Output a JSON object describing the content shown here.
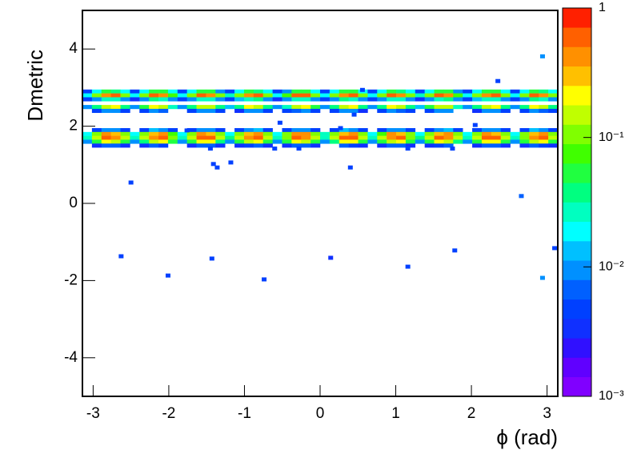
{
  "chart_data": {
    "type": "heatmap2d",
    "xlabel": "ϕ (rad)",
    "ylabel": "Dmetric",
    "xlim": [
      -3.1416,
      3.1416
    ],
    "xticks": [
      -3,
      -2,
      -1,
      0,
      1,
      2,
      3
    ],
    "ylim": [
      -5,
      5
    ],
    "yticks": [
      -4,
      -2,
      0,
      2,
      4
    ],
    "zlim": [
      0.001,
      1
    ],
    "zlog": true,
    "zticks": [
      {
        "value": 0.001,
        "label": "10⁻³"
      },
      {
        "value": 0.01,
        "label": "10⁻²"
      },
      {
        "value": 0.1,
        "label": "10⁻¹"
      },
      1
    ],
    "palette": [
      "#8000ff",
      "#6000ff",
      "#3010ff",
      "#1030ff",
      "#0040ff",
      "#0060ff",
      "#0090ff",
      "#00c0ff",
      "#00ffff",
      "#00ffc0",
      "#00ff80",
      "#20ff40",
      "#40ff00",
      "#80ff00",
      "#c0ff00",
      "#ffff00",
      "#ffc000",
      "#ff9000",
      "#ff6000",
      "#ff2000"
    ],
    "rows": [
      {
        "y": [
          2.85,
          2.95
        ],
        "values": [
          0.005,
          0.02,
          0.05,
          0.04,
          0.02,
          0.004,
          0.02,
          0.06,
          0.05,
          0.02,
          0.005,
          0.02,
          0.05,
          0.05,
          0.01,
          0.004,
          0.02,
          0.06,
          0.04,
          0.02,
          0.005,
          0.01,
          0.05,
          0.05,
          0.02,
          0.005,
          0.02,
          0.05,
          0.06,
          0.02,
          0.004,
          0.02,
          0.05,
          0.04,
          0.02,
          0.005,
          0.02,
          0.06,
          0.05,
          0.01,
          0.004,
          0.02,
          0.05,
          0.05,
          0.02,
          0.005,
          0.02,
          0.05,
          0.04,
          0.02
        ]
      },
      {
        "y": [
          2.75,
          2.85
        ],
        "values": [
          0.02,
          0.1,
          0.5,
          0.7,
          0.1,
          0.02,
          0.12,
          0.6,
          0.5,
          0.08,
          0.02,
          0.1,
          0.7,
          0.5,
          0.1,
          0.03,
          0.1,
          0.5,
          0.6,
          0.1,
          0.02,
          0.08,
          0.6,
          0.7,
          0.12,
          0.02,
          0.1,
          0.5,
          0.6,
          0.1,
          0.02,
          0.1,
          0.7,
          0.5,
          0.1,
          0.03,
          0.12,
          0.6,
          0.5,
          0.08,
          0.02,
          0.1,
          0.5,
          0.7,
          0.1,
          0.02,
          0.1,
          0.6,
          0.5,
          0.1
        ]
      },
      {
        "y": [
          2.65,
          2.75
        ],
        "values": [
          0.004,
          0.01,
          0.03,
          0.03,
          0.01,
          0.003,
          0.01,
          0.04,
          0.03,
          0.008,
          0.004,
          0.01,
          0.03,
          0.03,
          0.01,
          0.004,
          0.012,
          0.03,
          0.04,
          0.01,
          0.003,
          0.01,
          0.03,
          0.03,
          0.01,
          0.004,
          0.01,
          0.04,
          0.03,
          0.01,
          0.004,
          0.01,
          0.03,
          0.03,
          0.008,
          0.003,
          0.01,
          0.03,
          0.04,
          0.01,
          0.004,
          0.012,
          0.03,
          0.03,
          0.01,
          0.004,
          0.01,
          0.04,
          0.03,
          0.01
        ]
      },
      {
        "y": [
          2.45,
          2.55
        ],
        "values": [
          0.01,
          0.04,
          0.15,
          0.2,
          0.04,
          0.01,
          0.05,
          0.2,
          0.15,
          0.03,
          0.01,
          0.04,
          0.15,
          0.15,
          0.04,
          0.012,
          0.04,
          0.2,
          0.15,
          0.04,
          0.01,
          0.03,
          0.15,
          0.2,
          0.05,
          0.01,
          0.04,
          0.15,
          0.2,
          0.04,
          0.01,
          0.04,
          0.2,
          0.15,
          0.04,
          0.012,
          0.05,
          0.15,
          0.15,
          0.03,
          0.01,
          0.04,
          0.15,
          0.2,
          0.04,
          0.01,
          0.04,
          0.2,
          0.15,
          0.04
        ]
      },
      {
        "y": [
          2.35,
          2.45
        ],
        "values": [
          null,
          0.004,
          0.008,
          0.008,
          0.004,
          null,
          0.004,
          0.008,
          0.006,
          null,
          null,
          0.004,
          0.008,
          0.008,
          0.004,
          null,
          0.003,
          0.008,
          0.008,
          0.004,
          null,
          0.004,
          0.006,
          0.008,
          0.004,
          null,
          0.004,
          0.008,
          0.008,
          0.003,
          null,
          0.004,
          0.008,
          0.006,
          0.004,
          null,
          0.004,
          0.008,
          0.008,
          null,
          null,
          0.003,
          0.008,
          0.008,
          0.004,
          null,
          0.004,
          0.008,
          0.006,
          0.004
        ]
      },
      {
        "y": [
          1.85,
          1.95
        ],
        "values": [
          null,
          0.005,
          0.01,
          0.01,
          0.005,
          null,
          0.005,
          0.012,
          0.01,
          0.004,
          null,
          0.005,
          0.01,
          0.01,
          0.005,
          null,
          0.004,
          0.01,
          0.012,
          0.005,
          null,
          0.005,
          0.01,
          0.01,
          0.005,
          null,
          0.005,
          0.012,
          0.01,
          0.004,
          null,
          0.005,
          0.01,
          0.01,
          0.005,
          null,
          0.004,
          0.01,
          0.012,
          0.005,
          null,
          0.005,
          0.01,
          0.01,
          0.005,
          null,
          0.005,
          0.012,
          0.01,
          0.004
        ]
      },
      {
        "y": [
          1.75,
          1.85
        ],
        "values": [
          0.02,
          0.1,
          0.4,
          0.3,
          0.1,
          0.02,
          0.1,
          0.3,
          0.4,
          0.08,
          0.02,
          0.12,
          0.4,
          0.3,
          0.1,
          0.02,
          0.1,
          0.3,
          0.4,
          0.1,
          0.02,
          0.1,
          0.4,
          0.4,
          0.1,
          0.03,
          0.1,
          0.3,
          0.4,
          0.1,
          0.02,
          0.08,
          0.4,
          0.3,
          0.1,
          0.02,
          0.1,
          0.3,
          0.4,
          0.12,
          0.02,
          0.1,
          0.4,
          0.3,
          0.1,
          0.02,
          0.1,
          0.3,
          0.4,
          0.1
        ]
      },
      {
        "y": [
          1.65,
          1.75
        ],
        "values": [
          0.03,
          0.15,
          0.6,
          0.5,
          0.15,
          0.03,
          0.15,
          0.5,
          0.6,
          0.12,
          0.03,
          0.15,
          0.6,
          0.6,
          0.15,
          0.04,
          0.15,
          0.5,
          0.6,
          0.15,
          0.03,
          0.12,
          0.6,
          0.5,
          0.15,
          0.03,
          0.15,
          0.6,
          0.6,
          0.15,
          0.03,
          0.15,
          0.5,
          0.6,
          0.12,
          0.04,
          0.15,
          0.6,
          0.5,
          0.15,
          0.03,
          0.15,
          0.6,
          0.6,
          0.15,
          0.03,
          0.12,
          0.5,
          0.6,
          0.15
        ]
      },
      {
        "y": [
          1.55,
          1.65
        ],
        "values": [
          0.008,
          0.05,
          0.2,
          0.15,
          0.05,
          0.008,
          0.04,
          0.15,
          0.2,
          0.05,
          0.008,
          0.05,
          0.2,
          0.2,
          0.04,
          0.01,
          0.05,
          0.15,
          0.2,
          0.05,
          0.008,
          0.05,
          0.2,
          0.15,
          0.05,
          0.008,
          0.04,
          0.2,
          0.2,
          0.05,
          0.008,
          0.05,
          0.15,
          0.2,
          0.05,
          0.01,
          0.05,
          0.2,
          0.15,
          0.04,
          0.008,
          0.05,
          0.2,
          0.2,
          0.05,
          0.008,
          0.05,
          0.15,
          0.2,
          0.05
        ]
      },
      {
        "y": [
          1.45,
          1.55
        ],
        "values": [
          null,
          0.003,
          0.006,
          0.006,
          0.003,
          null,
          0.003,
          0.006,
          0.005,
          null,
          null,
          0.003,
          0.006,
          0.006,
          0.003,
          null,
          0.003,
          0.005,
          0.006,
          0.003,
          null,
          0.003,
          0.006,
          0.006,
          0.003,
          null,
          null,
          0.006,
          0.005,
          0.003,
          null,
          0.003,
          0.006,
          0.006,
          0.003,
          null,
          0.003,
          0.005,
          0.006,
          null,
          null,
          0.003,
          0.006,
          0.006,
          0.003,
          null,
          0.003,
          0.006,
          0.005,
          0.003
        ]
      }
    ],
    "points": [
      {
        "x": 2.94,
        "y": 3.81,
        "value": 0.01
      },
      {
        "x": 2.35,
        "y": 3.17,
        "value": 0.004
      },
      {
        "x": 0.56,
        "y": 2.94,
        "value": 0.004
      },
      {
        "x": 0.45,
        "y": 2.3,
        "value": 0.004
      },
      {
        "x": -0.53,
        "y": 2.09,
        "value": 0.004
      },
      {
        "x": 2.05,
        "y": 2.03,
        "value": 0.004
      },
      {
        "x": 0.27,
        "y": 1.95,
        "value": 0.005
      },
      {
        "x": -1.76,
        "y": 1.89,
        "value": 0.004
      },
      {
        "x": -1.45,
        "y": 1.42,
        "value": 0.004
      },
      {
        "x": -0.6,
        "y": 1.42,
        "value": 0.004
      },
      {
        "x": -0.28,
        "y": 1.42,
        "value": 0.004
      },
      {
        "x": 1.16,
        "y": 1.42,
        "value": 0.004
      },
      {
        "x": 1.75,
        "y": 1.42,
        "value": 0.004
      },
      {
        "x": -1.41,
        "y": 1.02,
        "value": 0.004
      },
      {
        "x": -1.36,
        "y": 0.93,
        "value": 0.004
      },
      {
        "x": -1.18,
        "y": 1.06,
        "value": 0.004
      },
      {
        "x": 0.4,
        "y": 0.93,
        "value": 0.004
      },
      {
        "x": -2.5,
        "y": 0.54,
        "value": 0.004
      },
      {
        "x": 2.66,
        "y": 0.19,
        "value": 0.006
      },
      {
        "x": 3.1,
        "y": -1.16,
        "value": 0.004
      },
      {
        "x": 1.78,
        "y": -1.22,
        "value": 0.004
      },
      {
        "x": 0.14,
        "y": -1.41,
        "value": 0.003
      },
      {
        "x": -2.63,
        "y": -1.37,
        "value": 0.004
      },
      {
        "x": -1.43,
        "y": -1.43,
        "value": 0.004
      },
      {
        "x": 1.16,
        "y": -1.64,
        "value": 0.004
      },
      {
        "x": -2.01,
        "y": -1.87,
        "value": 0.004
      },
      {
        "x": -0.74,
        "y": -1.97,
        "value": 0.004
      },
      {
        "x": 2.94,
        "y": -1.93,
        "value": 0.01
      }
    ]
  }
}
